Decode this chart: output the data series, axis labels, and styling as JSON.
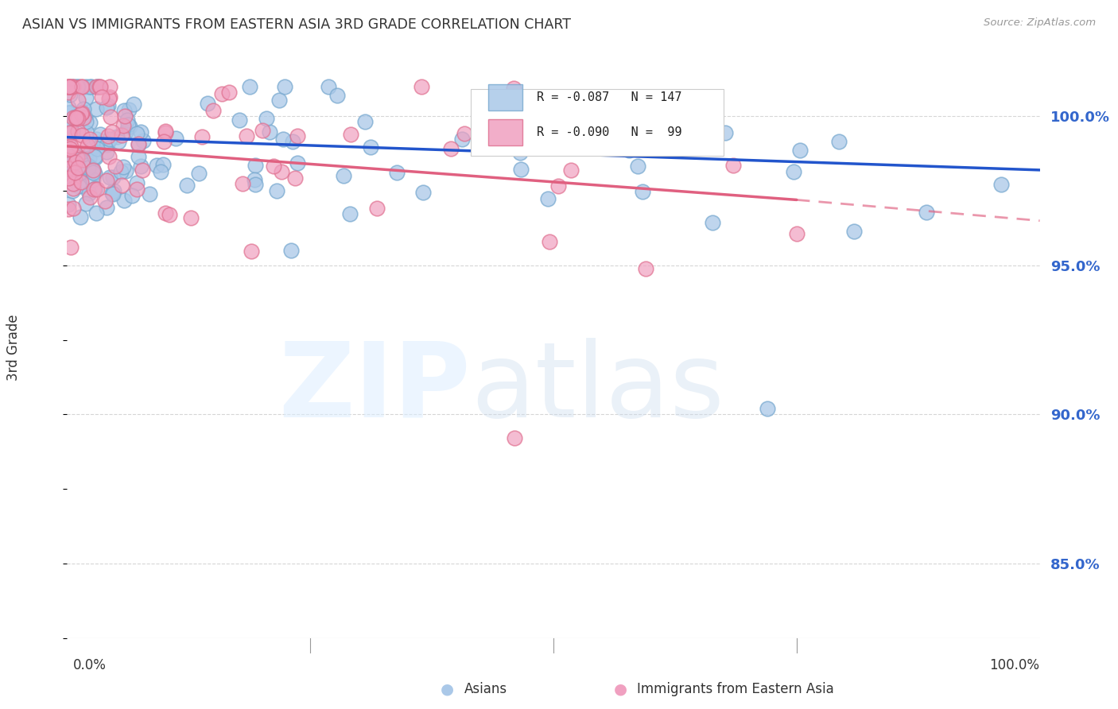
{
  "title": "ASIAN VS IMMIGRANTS FROM EASTERN ASIA 3RD GRADE CORRELATION CHART",
  "source": "Source: ZipAtlas.com",
  "ylabel": "3rd Grade",
  "ytick_labels": [
    "85.0%",
    "90.0%",
    "95.0%",
    "100.0%"
  ],
  "ytick_values": [
    0.85,
    0.9,
    0.95,
    1.0
  ],
  "legend_entries": [
    "Asians",
    "Immigrants from Eastern Asia"
  ],
  "blue_color": "#aac8e8",
  "pink_color": "#f0a0c0",
  "blue_edge_color": "#7aaad0",
  "pink_edge_color": "#e07090",
  "line_blue_color": "#2255cc",
  "line_pink_color": "#e06080",
  "background_color": "#ffffff",
  "grid_color": "#cccccc",
  "text_color": "#3366cc",
  "title_color": "#333333",
  "xlim": [
    0.0,
    1.0
  ],
  "ylim": [
    0.825,
    1.02
  ],
  "legend_R_blue": "R = -0.087",
  "legend_N_blue": "N = 147",
  "legend_R_pink": "R = -0.090",
  "legend_N_pink": "N =  99"
}
